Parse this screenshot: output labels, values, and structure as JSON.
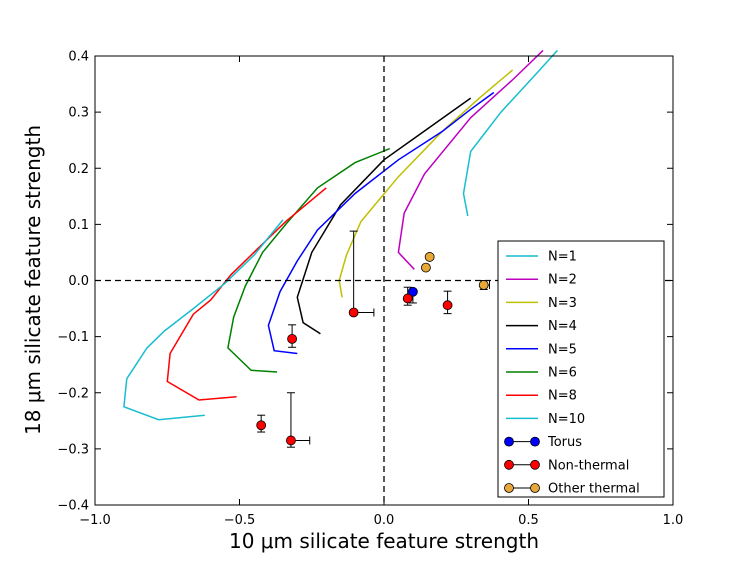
{
  "chart_data": {
    "type": "line",
    "title": "",
    "xlabel": "10 μm silicate feature strength",
    "ylabel": "18 μm silicate feature strength",
    "xlim": [
      -1.0,
      1.0
    ],
    "ylim": [
      -0.4,
      0.4
    ],
    "xticks": [
      -1.0,
      -0.5,
      0.0,
      0.5,
      1.0
    ],
    "xtick_labels": [
      "−1.0",
      "−0.5",
      "0.0",
      "0.5",
      "1.0"
    ],
    "yticks": [
      -0.4,
      -0.3,
      -0.2,
      -0.1,
      0.0,
      0.1,
      0.2,
      0.3,
      0.4
    ],
    "ytick_labels": [
      "−0.4",
      "−0.3",
      "−0.2",
      "−0.1",
      "0.0",
      "0.1",
      "0.2",
      "0.3",
      "0.4"
    ],
    "grid": false,
    "legend_position": "lower-right",
    "reference_lines": {
      "x": 0.0,
      "y": 0.0,
      "style": "dashed"
    },
    "series": [
      {
        "name": "N=1",
        "color": "#17becf",
        "points": [
          [
            0.29,
            0.115
          ],
          [
            0.275,
            0.155
          ],
          [
            0.3,
            0.23
          ],
          [
            0.405,
            0.3
          ],
          [
            0.53,
            0.37
          ],
          [
            0.6,
            0.41
          ]
        ]
      },
      {
        "name": "N=2",
        "color": "#bf00bf",
        "points": [
          [
            0.105,
            0.02
          ],
          [
            0.05,
            0.05
          ],
          [
            0.07,
            0.12
          ],
          [
            0.14,
            0.19
          ],
          [
            0.3,
            0.29
          ],
          [
            0.45,
            0.36
          ],
          [
            0.55,
            0.41
          ]
        ]
      },
      {
        "name": "N=3",
        "color": "#bfbf00",
        "points": [
          [
            -0.145,
            -0.03
          ],
          [
            -0.155,
            0.0
          ],
          [
            -0.13,
            0.045
          ],
          [
            -0.08,
            0.105
          ],
          [
            0.05,
            0.185
          ],
          [
            0.2,
            0.265
          ],
          [
            0.33,
            0.325
          ],
          [
            0.445,
            0.375
          ]
        ]
      },
      {
        "name": "N=4",
        "color": "#000000",
        "points": [
          [
            -0.22,
            -0.095
          ],
          [
            -0.28,
            -0.075
          ],
          [
            -0.3,
            -0.03
          ],
          [
            -0.25,
            0.05
          ],
          [
            -0.15,
            0.135
          ],
          [
            0.0,
            0.215
          ],
          [
            0.15,
            0.27
          ],
          [
            0.3,
            0.325
          ]
        ]
      },
      {
        "name": "N=5",
        "color": "#0000ff",
        "points": [
          [
            -0.3,
            -0.13
          ],
          [
            -0.38,
            -0.125
          ],
          [
            -0.4,
            -0.08
          ],
          [
            -0.36,
            -0.02
          ],
          [
            -0.3,
            0.035
          ],
          [
            -0.23,
            0.09
          ],
          [
            -0.1,
            0.155
          ],
          [
            0.05,
            0.215
          ],
          [
            0.2,
            0.265
          ],
          [
            0.3,
            0.305
          ],
          [
            0.38,
            0.335
          ]
        ]
      },
      {
        "name": "N=6",
        "color": "#008000",
        "points": [
          [
            -0.37,
            -0.163
          ],
          [
            -0.46,
            -0.16
          ],
          [
            -0.54,
            -0.12
          ],
          [
            -0.52,
            -0.065
          ],
          [
            -0.48,
            -0.01
          ],
          [
            -0.42,
            0.05
          ],
          [
            -0.34,
            0.1
          ],
          [
            -0.23,
            0.165
          ],
          [
            -0.1,
            0.21
          ],
          [
            0.02,
            0.235
          ]
        ]
      },
      {
        "name": "N=8",
        "color": "#ff0000",
        "points": [
          [
            -0.51,
            -0.207
          ],
          [
            -0.64,
            -0.213
          ],
          [
            -0.75,
            -0.18
          ],
          [
            -0.74,
            -0.13
          ],
          [
            -0.66,
            -0.06
          ],
          [
            -0.6,
            -0.035
          ],
          [
            -0.53,
            0.01
          ],
          [
            -0.44,
            0.055
          ],
          [
            -0.34,
            0.105
          ],
          [
            -0.2,
            0.165
          ]
        ]
      },
      {
        "name": "N=10",
        "color": "#17becf",
        "points": [
          [
            -0.62,
            -0.24
          ],
          [
            -0.78,
            -0.248
          ],
          [
            -0.9,
            -0.225
          ],
          [
            -0.89,
            -0.175
          ],
          [
            -0.82,
            -0.12
          ],
          [
            -0.76,
            -0.09
          ],
          [
            -0.66,
            -0.05
          ],
          [
            -0.55,
            -0.005
          ],
          [
            -0.45,
            0.045
          ],
          [
            -0.35,
            0.108
          ]
        ]
      }
    ],
    "error_series": [
      {
        "name": "Torus",
        "color": "#0000ff",
        "points": [
          {
            "x": 0.1,
            "y": -0.02,
            "xerr": [
              0.0,
              0.0
            ],
            "yerr": [
              0.02,
              0.0
            ]
          }
        ]
      },
      {
        "name": "Non-thermal",
        "color": "#ff0000",
        "points": [
          {
            "x": -0.105,
            "y": -0.057,
            "xerr": [
              0.0,
              0.07
            ],
            "yerr": [
              0.0,
              0.145
            ]
          },
          {
            "x": 0.082,
            "y": -0.032,
            "xerr": [
              0.0,
              0.0
            ],
            "yerr": [
              0.012,
              0.02
            ]
          },
          {
            "x": 0.22,
            "y": -0.044,
            "xerr": [
              0.0,
              0.0
            ],
            "yerr": [
              0.015,
              0.025
            ]
          },
          {
            "x": -0.318,
            "y": -0.104,
            "xerr": [
              0.0,
              0.0
            ],
            "yerr": [
              0.015,
              0.025
            ]
          },
          {
            "x": -0.425,
            "y": -0.258,
            "xerr": [
              0.0,
              0.0
            ],
            "yerr": [
              0.012,
              0.018
            ]
          },
          {
            "x": -0.322,
            "y": -0.285,
            "xerr": [
              0.0,
              0.065
            ],
            "yerr": [
              0.012,
              0.085
            ]
          }
        ]
      },
      {
        "name": "Other thermal",
        "color": "#e8a838",
        "points": [
          {
            "x": 0.145,
            "y": 0.023,
            "xerr": [
              0.0,
              0.0
            ],
            "yerr": [
              0.0,
              0.0
            ]
          },
          {
            "x": 0.158,
            "y": 0.042,
            "xerr": [
              0.0,
              0.0
            ],
            "yerr": [
              0.0,
              0.0
            ]
          },
          {
            "x": 0.345,
            "y": -0.008,
            "xerr": [
              0.0,
              0.02
            ],
            "yerr": [
              0.008,
              0.008
            ]
          }
        ]
      }
    ]
  }
}
